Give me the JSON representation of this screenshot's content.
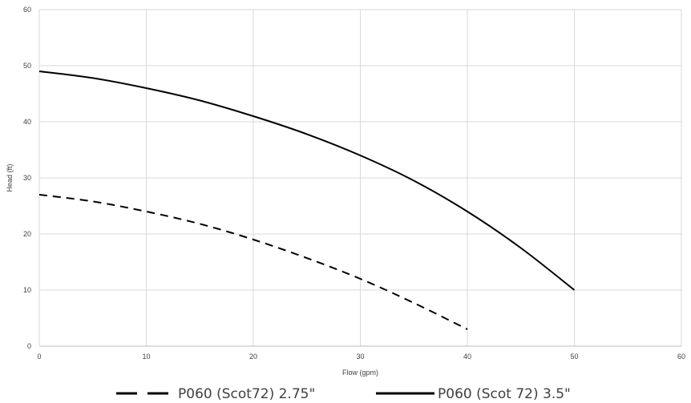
{
  "chart_data": {
    "type": "line",
    "title": "",
    "xlabel": "Flow (gpm)",
    "ylabel": "Head (ft)",
    "xlim": [
      0,
      60
    ],
    "ylim": [
      0,
      60
    ],
    "x_ticks": [
      0,
      10,
      20,
      30,
      40,
      50,
      60
    ],
    "y_ticks": [
      0,
      10,
      20,
      30,
      40,
      50,
      60
    ],
    "grid": true,
    "legend_position": "bottom",
    "series": [
      {
        "name": "P060 (Scot72) 2.75\"",
        "style": "dashed",
        "color": "#000000",
        "x": [
          0,
          5,
          10,
          15,
          20,
          25,
          30,
          35,
          40
        ],
        "y": [
          27,
          25.8,
          24,
          21.8,
          19,
          15.7,
          12,
          7.7,
          3
        ]
      },
      {
        "name": "P060 (Scot 72) 3.5\"",
        "style": "solid",
        "color": "#000000",
        "x": [
          0,
          5,
          10,
          15,
          20,
          25,
          30,
          35,
          40,
          45,
          50
        ],
        "y": [
          49,
          47.8,
          46,
          43.8,
          41,
          37.8,
          34,
          29.5,
          24,
          17.5,
          10
        ]
      }
    ]
  }
}
